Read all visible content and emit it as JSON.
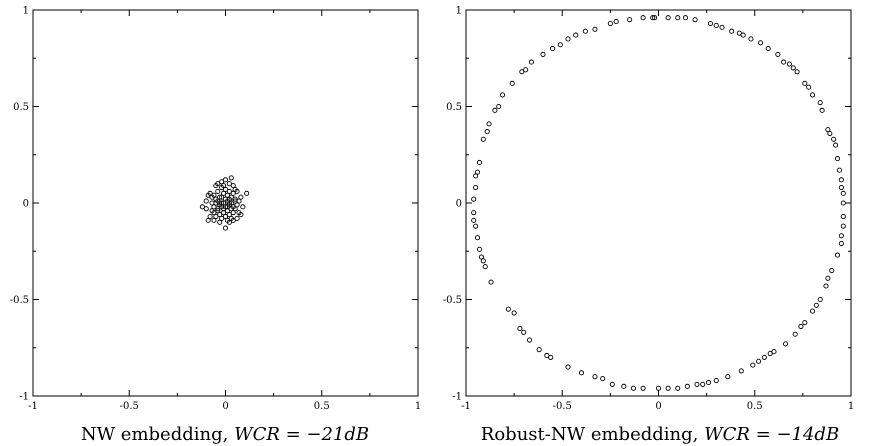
{
  "chart_data": [
    {
      "type": "scatter",
      "title": "",
      "xlim": [
        -1,
        1
      ],
      "ylim": [
        -1,
        1
      ],
      "xticks": [
        "-1",
        "-0.5",
        "0",
        "0.5",
        "1"
      ],
      "yticks": [
        "-1",
        "-0.5",
        "0",
        "0.5",
        "1"
      ],
      "grid": false,
      "caption": {
        "prefix": "NW embedding, ",
        "math": "WCR = −21dB"
      },
      "points": [
        [
          -0.06,
          0.04
        ],
        [
          -0.05,
          0.02
        ],
        [
          -0.04,
          0.06
        ],
        [
          -0.03,
          0.03
        ],
        [
          -0.02,
          0.08
        ],
        [
          -0.01,
          0.05
        ],
        [
          0.0,
          0.07
        ],
        [
          0.01,
          0.04
        ],
        [
          0.02,
          0.06
        ],
        [
          0.03,
          0.03
        ],
        [
          0.04,
          0.05
        ],
        [
          0.05,
          0.02
        ],
        [
          -0.07,
          0.0
        ],
        [
          -0.06,
          -0.02
        ],
        [
          -0.05,
          0.0
        ],
        [
          -0.04,
          -0.03
        ],
        [
          -0.03,
          0.0
        ],
        [
          -0.02,
          -0.02
        ],
        [
          -0.01,
          0.0
        ],
        [
          0.0,
          -0.02
        ],
        [
          0.01,
          0.01
        ],
        [
          0.02,
          -0.01
        ],
        [
          0.03,
          0.0
        ],
        [
          0.04,
          -0.02
        ],
        [
          0.05,
          0.01
        ],
        [
          0.06,
          -0.01
        ],
        [
          -0.06,
          -0.05
        ],
        [
          -0.05,
          -0.07
        ],
        [
          -0.04,
          -0.04
        ],
        [
          -0.03,
          -0.06
        ],
        [
          -0.02,
          -0.08
        ],
        [
          -0.01,
          -0.05
        ],
        [
          0.0,
          -0.07
        ],
        [
          0.01,
          -0.04
        ],
        [
          0.02,
          -0.06
        ],
        [
          0.03,
          -0.08
        ],
        [
          0.04,
          -0.05
        ],
        [
          0.05,
          -0.03
        ],
        [
          -0.02,
          0.11
        ],
        [
          0.0,
          0.12
        ],
        [
          0.02,
          0.1
        ],
        [
          0.04,
          0.09
        ],
        [
          -0.05,
          0.09
        ],
        [
          -0.08,
          0.05
        ],
        [
          -0.1,
          0.01
        ],
        [
          -0.1,
          -0.03
        ],
        [
          -0.08,
          -0.07
        ],
        [
          -0.06,
          -0.09
        ],
        [
          0.06,
          0.06
        ],
        [
          0.08,
          0.03
        ],
        [
          0.09,
          -0.02
        ],
        [
          0.07,
          -0.05
        ],
        [
          0.06,
          -0.08
        ],
        [
          0.11,
          0.05
        ],
        [
          0.0,
          -0.13
        ],
        [
          -0.03,
          -0.1
        ],
        [
          0.02,
          -0.1
        ],
        [
          -0.12,
          -0.02
        ],
        [
          -0.09,
          -0.09
        ],
        [
          0.03,
          0.13
        ],
        [
          -0.04,
          0.01
        ],
        [
          -0.02,
          0.03
        ],
        [
          0.0,
          0.02
        ],
        [
          0.02,
          0.02
        ],
        [
          -0.01,
          -0.03
        ],
        [
          0.01,
          -0.02
        ],
        [
          -0.03,
          -0.01
        ],
        [
          0.03,
          -0.03
        ],
        [
          -0.02,
          0.0
        ],
        [
          0.02,
          0.0
        ],
        [
          -0.07,
          0.03
        ],
        [
          0.07,
          0.01
        ],
        [
          -0.01,
          0.09
        ],
        [
          0.01,
          -0.09
        ],
        [
          -0.07,
          -0.04
        ],
        [
          0.05,
          0.07
        ],
        [
          -0.04,
          0.1
        ],
        [
          0.04,
          -0.09
        ],
        [
          0.08,
          -0.06
        ],
        [
          -0.09,
          0.04
        ]
      ]
    },
    {
      "type": "scatter",
      "title": "",
      "xlim": [
        -1,
        1
      ],
      "ylim": [
        -1,
        1
      ],
      "xticks": [
        "-1",
        "-0.5",
        "0",
        "0.5",
        "1"
      ],
      "yticks": [
        "-1",
        "-0.5",
        "0",
        "0.5",
        "1"
      ],
      "grid": false,
      "caption": {
        "prefix": "Robust-NW embedding, ",
        "math": "WCR = −14dB"
      },
      "points": [
        [
          0.96,
          0.0
        ],
        [
          0.96,
          0.05
        ],
        [
          0.95,
          0.12
        ],
        [
          0.94,
          0.17
        ],
        [
          0.92,
          0.3
        ],
        [
          0.91,
          0.33
        ],
        [
          0.88,
          0.38
        ],
        [
          0.85,
          0.48
        ],
        [
          0.84,
          0.52
        ],
        [
          0.8,
          0.56
        ],
        [
          0.76,
          0.62
        ],
        [
          0.72,
          0.68
        ],
        [
          0.68,
          0.72
        ],
        [
          0.62,
          0.77
        ],
        [
          0.57,
          0.8
        ],
        [
          0.53,
          0.83
        ],
        [
          0.44,
          0.87
        ],
        [
          0.38,
          0.89
        ],
        [
          0.3,
          0.92
        ],
        [
          0.27,
          0.93
        ],
        [
          0.19,
          0.95
        ],
        [
          0.1,
          0.96
        ],
        [
          0.05,
          0.96
        ],
        [
          -0.02,
          0.96
        ],
        [
          -0.08,
          0.96
        ],
        [
          -0.15,
          0.95
        ],
        [
          -0.22,
          0.94
        ],
        [
          -0.33,
          0.9
        ],
        [
          -0.38,
          0.89
        ],
        [
          -0.47,
          0.85
        ],
        [
          -0.55,
          0.8
        ],
        [
          -0.6,
          0.77
        ],
        [
          -0.66,
          0.73
        ],
        [
          -0.71,
          0.68
        ],
        [
          -0.76,
          0.62
        ],
        [
          -0.81,
          0.56
        ],
        [
          -0.85,
          0.48
        ],
        [
          -0.88,
          0.41
        ],
        [
          -0.91,
          0.33
        ],
        [
          -0.93,
          0.21
        ],
        [
          -0.94,
          0.16
        ],
        [
          -0.95,
          0.08
        ],
        [
          -0.96,
          0.02
        ],
        [
          -0.96,
          -0.05
        ],
        [
          -0.95,
          -0.12
        ],
        [
          -0.94,
          -0.18
        ],
        [
          -0.93,
          -0.24
        ],
        [
          -0.91,
          -0.3
        ],
        [
          -0.9,
          -0.33
        ],
        [
          -0.87,
          -0.41
        ],
        [
          -0.78,
          -0.55
        ],
        [
          -0.72,
          -0.65
        ],
        [
          -0.67,
          -0.71
        ],
        [
          -0.62,
          -0.76
        ],
        [
          -0.56,
          -0.8
        ],
        [
          -0.47,
          -0.85
        ],
        [
          -0.4,
          -0.88
        ],
        [
          -0.33,
          -0.9
        ],
        [
          -0.24,
          -0.94
        ],
        [
          -0.18,
          -0.95
        ],
        [
          -0.08,
          -0.96
        ],
        [
          0.0,
          -0.96
        ],
        [
          0.05,
          -0.96
        ],
        [
          0.1,
          -0.96
        ],
        [
          0.15,
          -0.95
        ],
        [
          0.23,
          -0.94
        ],
        [
          0.3,
          -0.92
        ],
        [
          0.36,
          -0.9
        ],
        [
          0.43,
          -0.87
        ],
        [
          0.49,
          -0.84
        ],
        [
          0.55,
          -0.8
        ],
        [
          0.6,
          -0.77
        ],
        [
          0.66,
          -0.73
        ],
        [
          0.71,
          -0.68
        ],
        [
          0.76,
          -0.62
        ],
        [
          0.8,
          -0.56
        ],
        [
          0.84,
          -0.5
        ],
        [
          0.87,
          -0.43
        ],
        [
          0.9,
          -0.35
        ],
        [
          0.93,
          -0.27
        ],
        [
          0.95,
          -0.17
        ],
        [
          0.96,
          -0.07
        ],
        [
          0.95,
          0.08
        ],
        [
          0.89,
          0.36
        ],
        [
          0.78,
          0.6
        ],
        [
          0.65,
          0.73
        ],
        [
          0.48,
          0.85
        ],
        [
          0.33,
          0.91
        ],
        [
          -0.03,
          0.96
        ],
        [
          -0.25,
          0.93
        ],
        [
          -0.51,
          0.82
        ],
        [
          -0.69,
          0.69
        ],
        [
          -0.83,
          0.5
        ],
        [
          -0.95,
          0.14
        ],
        [
          -0.92,
          -0.28
        ],
        [
          -0.75,
          -0.57
        ],
        [
          -0.58,
          -0.79
        ],
        [
          -0.13,
          -0.96
        ],
        [
          0.26,
          -0.93
        ],
        [
          0.58,
          -0.78
        ],
        [
          0.74,
          -0.64
        ],
        [
          0.88,
          -0.39
        ],
        [
          0.95,
          -0.21
        ],
        [
          0.93,
          0.23
        ],
        [
          0.7,
          0.7
        ],
        [
          0.42,
          0.88
        ],
        [
          0.14,
          0.96
        ],
        [
          -0.43,
          0.87
        ],
        [
          -0.89,
          0.37
        ],
        [
          -0.96,
          -0.09
        ],
        [
          -0.7,
          -0.67
        ],
        [
          -0.29,
          -0.91
        ],
        [
          0.2,
          -0.94
        ],
        [
          0.52,
          -0.82
        ],
        [
          0.82,
          -0.53
        ],
        [
          0.96,
          -0.12
        ]
      ]
    }
  ]
}
